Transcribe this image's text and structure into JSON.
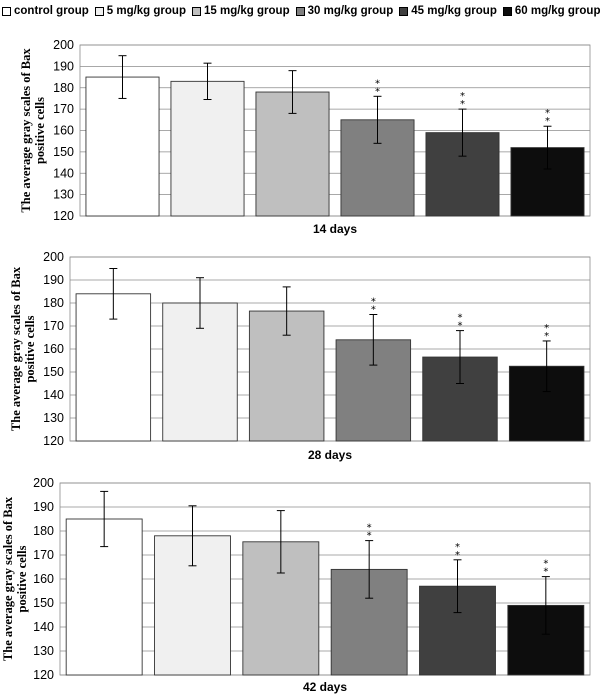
{
  "legend": [
    {
      "label": "control group",
      "color": "#ffffff"
    },
    {
      "label": "5 mg/kg group",
      "color": "#f0f0f0"
    },
    {
      "label": "15 mg/kg group",
      "color": "#bfbfbf"
    },
    {
      "label": "30 mg/kg group",
      "color": "#808080"
    },
    {
      "label": "45 mg/kg group",
      "color": "#404040"
    },
    {
      "label": "60 mg/kg group",
      "color": "#0d0d0d"
    }
  ],
  "chart_data": [
    {
      "type": "bar",
      "title": "",
      "xlabel": "14 days",
      "ylabel_lines": [
        "The average gray scales of Bax",
        "positive cells"
      ],
      "categories": [
        "control group",
        "5 mg/kg group",
        "15 mg/kg group",
        "30 mg/kg group",
        "45 mg/kg group",
        "60 mg/kg group"
      ],
      "values": [
        185,
        183,
        178,
        165,
        159,
        152
      ],
      "errors": [
        10,
        8.5,
        10,
        11,
        11,
        10
      ],
      "significance": [
        "",
        "",
        "",
        "**",
        "**",
        "**"
      ],
      "ylim": [
        120,
        200
      ],
      "yticks": [
        120,
        130,
        140,
        150,
        160,
        170,
        180,
        190,
        200
      ]
    },
    {
      "type": "bar",
      "title": "",
      "xlabel": "28 days",
      "ylabel_lines": [
        "The average gray scales of Bax",
        "positive cells"
      ],
      "categories": [
        "control group",
        "5 mg/kg group",
        "15 mg/kg group",
        "30 mg/kg group",
        "45 mg/kg group",
        "60 mg/kg group"
      ],
      "values": [
        184,
        180,
        176.5,
        164,
        156.5,
        152.5
      ],
      "errors": [
        11,
        11,
        10.5,
        11,
        11.5,
        11
      ],
      "significance": [
        "",
        "",
        "",
        "**",
        "**",
        "**"
      ],
      "ylim": [
        120,
        200
      ],
      "yticks": [
        120,
        130,
        140,
        150,
        160,
        170,
        180,
        190,
        200
      ]
    },
    {
      "type": "bar",
      "title": "",
      "xlabel": "42 days",
      "ylabel_lines": [
        "The average gray scales of Bax",
        "positive cells"
      ],
      "categories": [
        "control group",
        "5 mg/kg group",
        "15 mg/kg group",
        "30 mg/kg group",
        "45 mg/kg group",
        "60 mg/kg group"
      ],
      "values": [
        185,
        178,
        175.5,
        164,
        157,
        149
      ],
      "errors": [
        11.5,
        12.5,
        13,
        12,
        11,
        12
      ],
      "significance": [
        "",
        "",
        "",
        "**",
        "**",
        "**"
      ],
      "ylim": [
        120,
        200
      ],
      "yticks": [
        120,
        130,
        140,
        150,
        160,
        170,
        180,
        190,
        200
      ]
    }
  ]
}
